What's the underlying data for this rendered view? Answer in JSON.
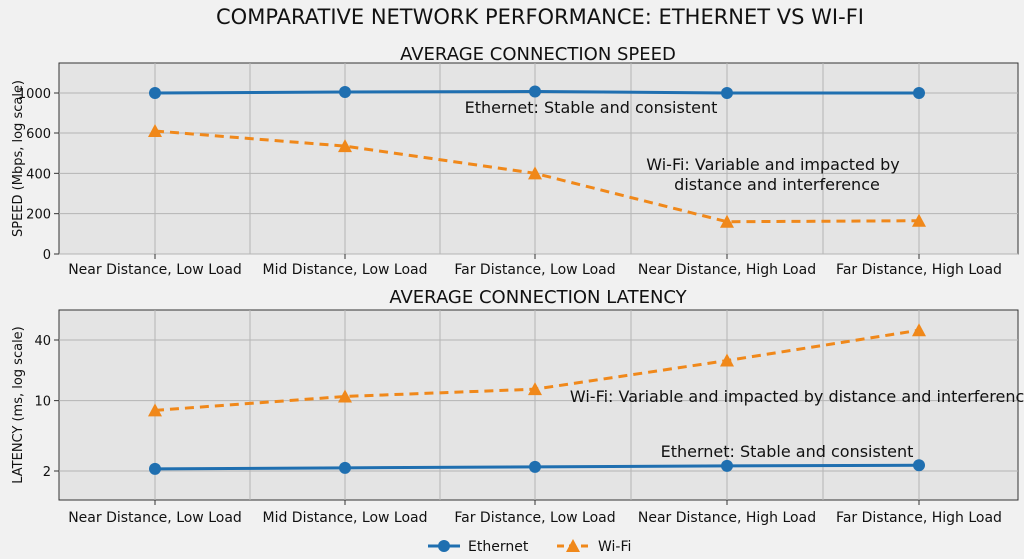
{
  "title": "COMPARATIVE NETWORK PERFORMANCE: ETHERNET VS WI-FI",
  "colors": {
    "ethernet": "#1f6fb0",
    "wifi": "#f0881a",
    "panel_bg": "#e4e4e4",
    "grid": "#b5b5b5"
  },
  "legend": {
    "position": "bottom-center",
    "ethernet_label": "Ethernet",
    "wifi_label": "Wi-Fi"
  },
  "chart_data": [
    {
      "type": "line",
      "title": "AVERAGE CONNECTION SPEED",
      "xlabel": "",
      "ylabel": "SPEED (Mbps, log scale)",
      "categories": [
        "Near Distance, Low Load",
        "Mid Distance, Low Load",
        "Far Distance, Low Load",
        "Near Distance, High Load",
        "Far Distance, High Load"
      ],
      "yticks": [
        0,
        200,
        400,
        600,
        1000
      ],
      "ylim": [
        0,
        1000
      ],
      "grid": true,
      "series": [
        {
          "name": "Ethernet",
          "values": [
            1000,
            1010,
            1015,
            1000,
            1000
          ],
          "style": "solid",
          "marker": "circle"
        },
        {
          "name": "Wi-Fi",
          "values": [
            620,
            535,
            400,
            160,
            165
          ],
          "style": "dashed",
          "marker": "triangle"
        }
      ],
      "annotations": [
        {
          "text": "Ethernet: Stable and consistent"
        },
        {
          "text": "Wi-Fi: Variable and impacted by"
        },
        {
          "text": "distance and interference"
        }
      ]
    },
    {
      "type": "line",
      "title": "AVERAGE CONNECTION LATENCY",
      "xlabel": "",
      "ylabel": "LATENCY (ms, log scale)",
      "categories": [
        "Near Distance, Low Load",
        "Mid Distance, Low Load",
        "Far Distance, Low Load",
        "Near Distance, High Load",
        "Far Distance, High Load"
      ],
      "yticks": [
        2,
        10,
        40
      ],
      "ylim": [
        1,
        60
      ],
      "scale": "log",
      "grid": true,
      "series": [
        {
          "name": "Ethernet",
          "values": [
            2.1,
            2.15,
            2.2,
            2.25,
            2.28
          ],
          "style": "solid",
          "marker": "circle"
        },
        {
          "name": "Wi-Fi",
          "values": [
            8,
            11,
            13,
            25,
            50
          ],
          "style": "dashed",
          "marker": "triangle"
        }
      ],
      "annotations": [
        {
          "text": "Wi-Fi: Variable and impacted by distance and interference"
        },
        {
          "text": "Ethernet: Stable and consistent"
        }
      ]
    }
  ]
}
